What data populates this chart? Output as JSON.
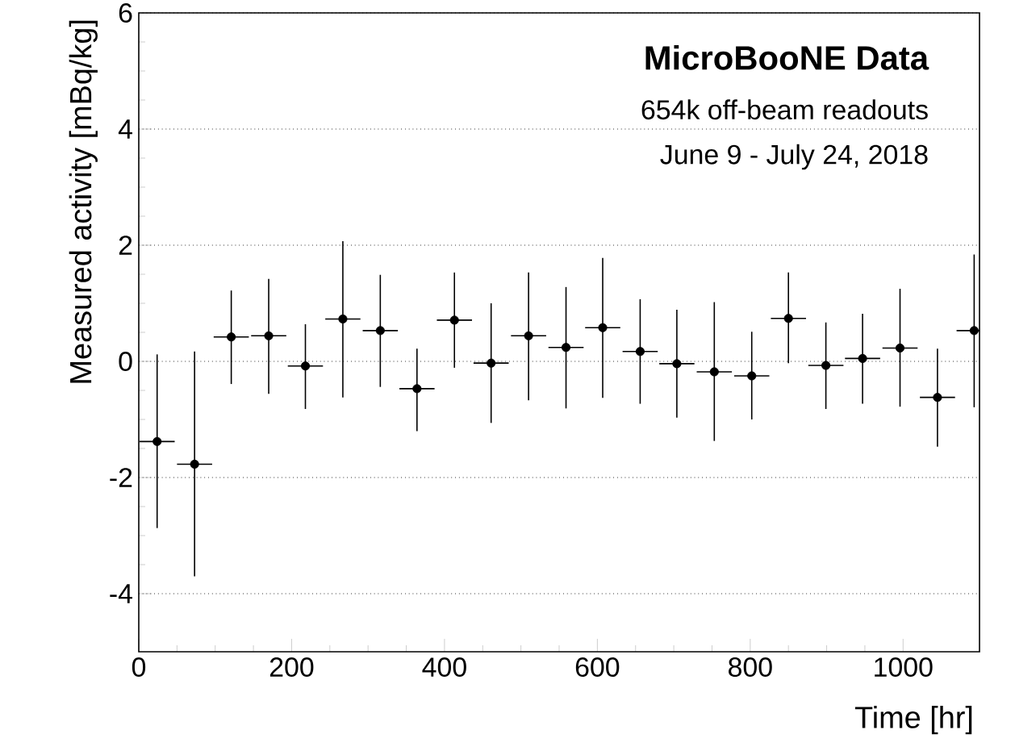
{
  "chart_data": {
    "type": "scatter",
    "xlabel": "Time [hr]",
    "ylabel": "Measured activity [mBq/kg]",
    "annotations": [
      "MicroBooNE Data",
      "654k off-beam readouts",
      "June 9 - July 24, 2018"
    ],
    "x": [
      24,
      73,
      121,
      170,
      218,
      267,
      316,
      364,
      413,
      461,
      510,
      559,
      607,
      656,
      704,
      753,
      802,
      850,
      899,
      947,
      996,
      1045,
      1093
    ],
    "values": [
      -1.38,
      -1.77,
      0.42,
      0.44,
      -0.08,
      0.73,
      0.53,
      -0.47,
      0.71,
      -0.03,
      0.44,
      0.24,
      0.58,
      0.17,
      -0.04,
      -0.18,
      -0.25,
      0.74,
      -0.07,
      0.05,
      0.23,
      -0.62,
      0.53
    ],
    "errors": [
      [
        -2.87,
        0.12
      ],
      [
        -3.7,
        0.17
      ],
      [
        -0.39,
        1.22
      ],
      [
        -0.56,
        1.42
      ],
      [
        -0.82,
        0.64
      ],
      [
        -0.62,
        2.07
      ],
      [
        -0.44,
        1.49
      ],
      [
        -1.2,
        0.22
      ],
      [
        -0.11,
        1.53
      ],
      [
        -1.06,
        1.0
      ],
      [
        -0.67,
        1.53
      ],
      [
        -0.81,
        1.28
      ],
      [
        -0.63,
        1.78
      ],
      [
        -0.73,
        1.07
      ],
      [
        -0.97,
        0.89
      ],
      [
        -1.37,
        1.02
      ],
      [
        -1.0,
        0.51
      ],
      [
        -0.03,
        1.53
      ],
      [
        -0.82,
        0.67
      ],
      [
        -0.73,
        0.82
      ],
      [
        -0.78,
        1.25
      ],
      [
        -1.47,
        0.22
      ],
      [
        -0.79,
        1.84
      ]
    ],
    "xerrors": [
      23,
      23,
      23,
      23,
      23,
      23,
      23,
      23,
      23,
      23,
      23,
      23,
      23,
      23,
      23,
      23,
      23,
      23,
      23,
      23,
      23,
      23,
      23
    ],
    "color": "#000000",
    "marker": "circle",
    "grid": "y",
    "xlim": [
      0,
      1100
    ],
    "ylim": [
      -5,
      6
    ],
    "xticks": [
      0,
      200,
      400,
      600,
      800,
      1000
    ],
    "yticks": [
      -4,
      -2,
      0,
      2,
      4,
      6
    ]
  }
}
